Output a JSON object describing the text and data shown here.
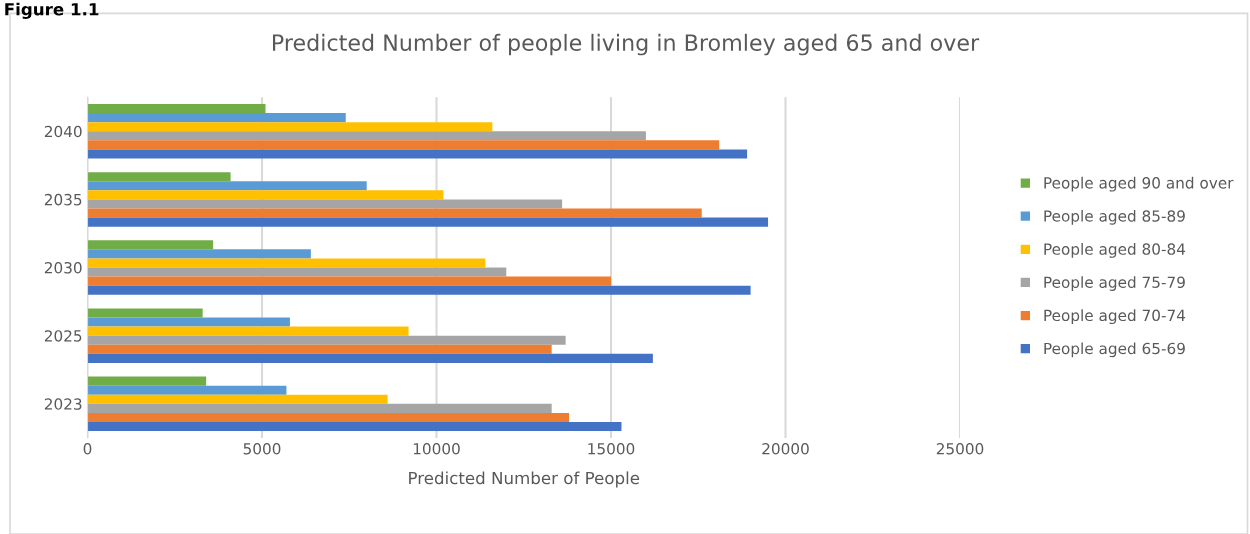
{
  "chart_data": {
    "type": "bar",
    "orientation": "horizontal",
    "title": "Predicted Number of people living in Bromley aged 65 and over",
    "xlabel": "Predicted Number of People",
    "annotations": [
      "Figure 1.1"
    ],
    "categories": [
      "2040",
      "2035",
      "2030",
      "2025",
      "2023"
    ],
    "series": [
      {
        "name": "People aged 90 and over",
        "color": "#70ad47",
        "values": [
          5100,
          4100,
          3600,
          3300,
          3400
        ]
      },
      {
        "name": "People aged 85-89",
        "color": "#5b9bd5",
        "values": [
          7400,
          8000,
          6400,
          5800,
          5700
        ]
      },
      {
        "name": "People aged 80-84",
        "color": "#ffc000",
        "values": [
          11600,
          10200,
          11400,
          9200,
          8600
        ]
      },
      {
        "name": "People aged 75-79",
        "color": "#a5a5a5",
        "values": [
          16000,
          13600,
          12000,
          13700,
          13300
        ]
      },
      {
        "name": "People aged 70-74",
        "color": "#ed7d31",
        "values": [
          18100,
          17600,
          15000,
          13300,
          13800
        ]
      },
      {
        "name": "People aged 65-69",
        "color": "#4472c4",
        "values": [
          18900,
          19500,
          19000,
          16200,
          15300
        ]
      }
    ],
    "xlim": [
      0,
      25000
    ],
    "xticks": [
      0,
      5000,
      10000,
      15000,
      20000,
      25000
    ],
    "grid": "x",
    "legend": "right"
  }
}
